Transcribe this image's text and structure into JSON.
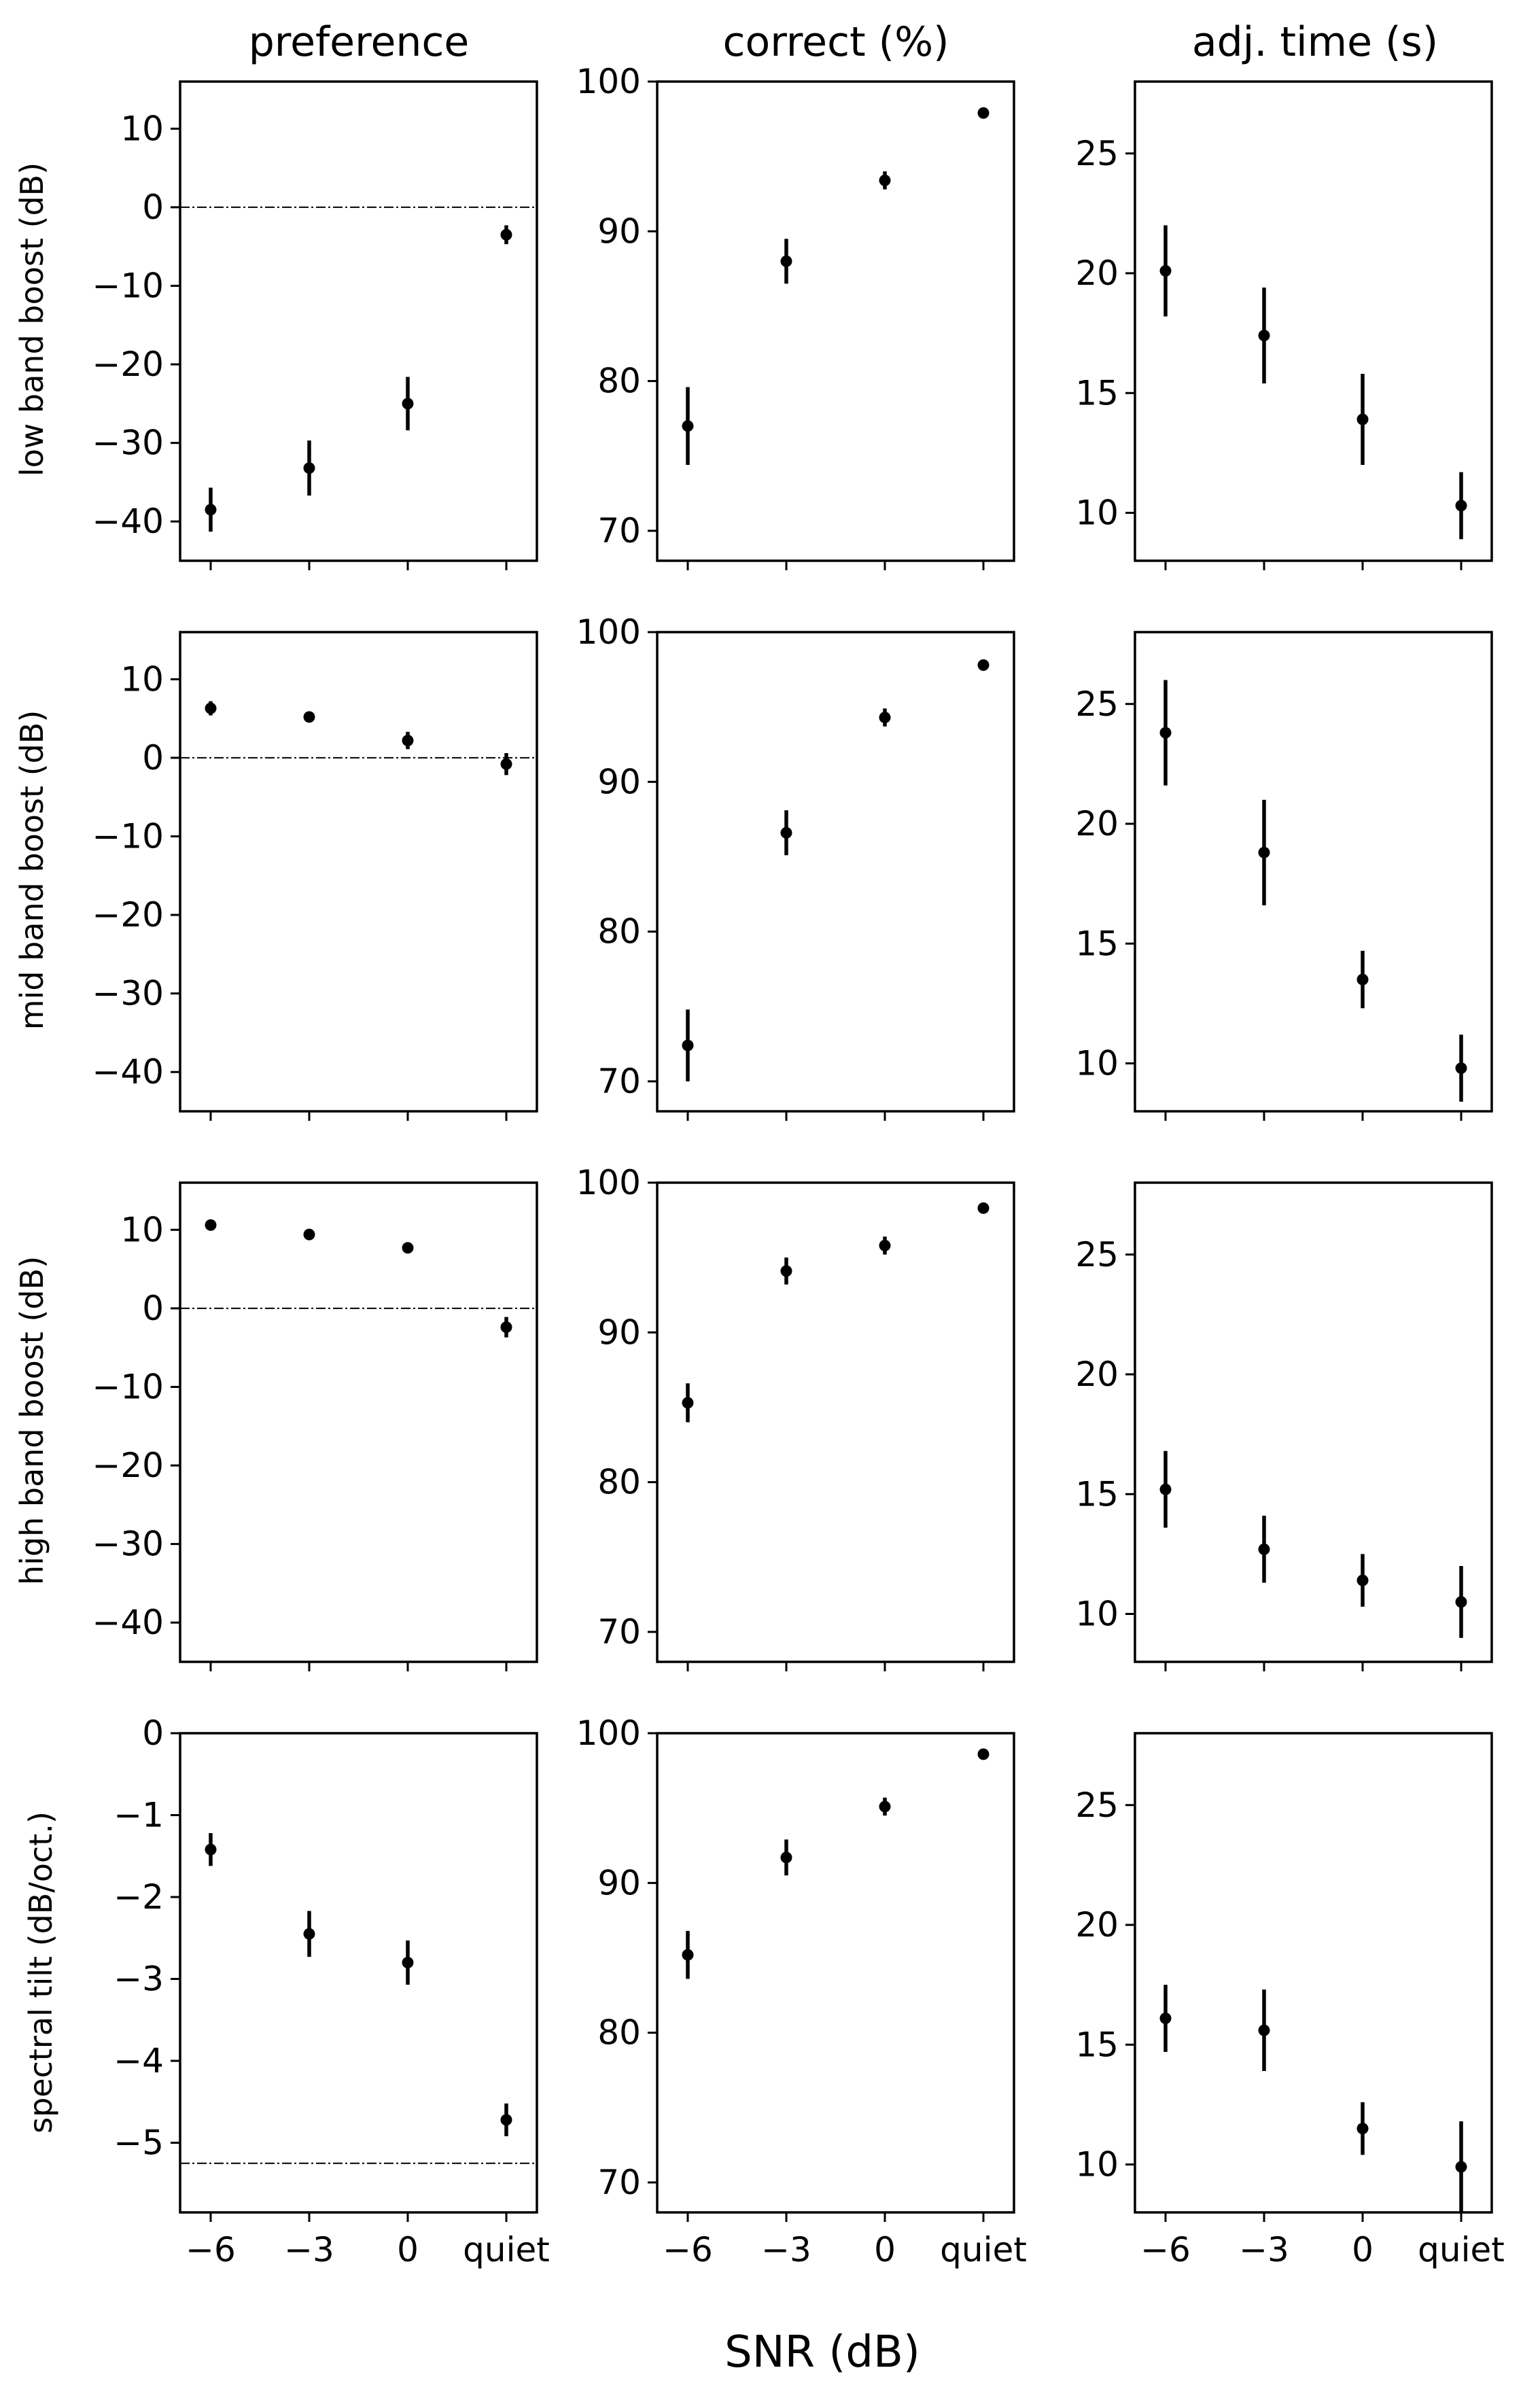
{
  "figure": {
    "xlabel": "SNR (dB)",
    "column_titles": [
      "preference",
      "correct (%)",
      "adj. time (s)"
    ],
    "row_labels": [
      "low band boost (dB)",
      "mid band boost (dB)",
      "high band boost (dB)",
      "spectral tilt (dB/oct.)"
    ]
  },
  "style": {
    "marker_color": "#000000",
    "reference_line_color": "#000000"
  },
  "chart_data": [
    {
      "type": "scatter",
      "panel": "low band boost / preference",
      "x": [
        "-6",
        "-3",
        "0",
        "quiet"
      ],
      "y": [
        -38.5,
        -33.2,
        -25,
        -3.5
      ],
      "error": [
        2.8,
        3.5,
        3.4,
        1.2
      ],
      "ylim": [
        -45,
        16
      ],
      "yticks": [
        -40,
        -30,
        -20,
        -10,
        0,
        10
      ],
      "yticklabels": [
        "−40",
        "−30",
        "−20",
        "−10",
        "0",
        "10"
      ],
      "reference_line": 0
    },
    {
      "type": "scatter",
      "panel": "low band boost / correct",
      "x": [
        "-6",
        "-3",
        "0",
        "quiet"
      ],
      "y": [
        77,
        88,
        93.4,
        97.9
      ],
      "error": [
        2.6,
        1.5,
        0.6,
        0.3
      ],
      "ylim": [
        68,
        100
      ],
      "yticks": [
        70,
        80,
        90,
        100
      ],
      "yticklabels": [
        "70",
        "80",
        "90",
        "100"
      ]
    },
    {
      "type": "scatter",
      "panel": "low band boost / adj. time",
      "x": [
        "-6",
        "-3",
        "0",
        "quiet"
      ],
      "y": [
        20.1,
        17.4,
        13.9,
        10.3
      ],
      "error": [
        1.9,
        2.0,
        1.9,
        1.4
      ],
      "ylim": [
        8,
        28
      ],
      "yticks": [
        10,
        15,
        20,
        25
      ],
      "yticklabels": [
        "10",
        "15",
        "20",
        "25"
      ]
    },
    {
      "type": "scatter",
      "panel": "mid band boost / preference",
      "x": [
        "-6",
        "-3",
        "0",
        "quiet"
      ],
      "y": [
        6.3,
        5.2,
        2.2,
        -0.8
      ],
      "error": [
        0.9,
        0.5,
        1.1,
        1.4
      ],
      "ylim": [
        -45,
        16
      ],
      "yticks": [
        -40,
        -30,
        -20,
        -10,
        0,
        10
      ],
      "yticklabels": [
        "−40",
        "−30",
        "−20",
        "−10",
        "0",
        "10"
      ],
      "reference_line": 0
    },
    {
      "type": "scatter",
      "panel": "mid band boost / correct",
      "x": [
        "-6",
        "-3",
        "0",
        "quiet"
      ],
      "y": [
        72.4,
        86.6,
        94.3,
        97.8
      ],
      "error": [
        2.4,
        1.5,
        0.6,
        0.3
      ],
      "ylim": [
        68,
        100
      ],
      "yticks": [
        70,
        80,
        90,
        100
      ],
      "yticklabels": [
        "70",
        "80",
        "90",
        "100"
      ]
    },
    {
      "type": "scatter",
      "panel": "mid band boost / adj. time",
      "x": [
        "-6",
        "-3",
        "0",
        "quiet"
      ],
      "y": [
        23.8,
        18.8,
        13.5,
        9.8
      ],
      "error": [
        2.2,
        2.2,
        1.2,
        1.4
      ],
      "ylim": [
        8,
        28
      ],
      "yticks": [
        10,
        15,
        20,
        25
      ],
      "yticklabels": [
        "10",
        "15",
        "20",
        "25"
      ]
    },
    {
      "type": "scatter",
      "panel": "high band boost / preference",
      "x": [
        "-6",
        "-3",
        "0",
        "quiet"
      ],
      "y": [
        10.6,
        9.4,
        7.7,
        -2.4
      ],
      "error": [
        0.4,
        0.4,
        0.7,
        1.3
      ],
      "ylim": [
        -45,
        16
      ],
      "yticks": [
        -40,
        -30,
        -20,
        -10,
        0,
        10
      ],
      "yticklabels": [
        "−40",
        "−30",
        "−20",
        "−10",
        "0",
        "10"
      ],
      "reference_line": 0
    },
    {
      "type": "scatter",
      "panel": "high band boost / correct",
      "x": [
        "-6",
        "-3",
        "0",
        "quiet"
      ],
      "y": [
        85.3,
        94.1,
        95.8,
        98.3
      ],
      "error": [
        1.3,
        0.9,
        0.6,
        0.2
      ],
      "ylim": [
        68,
        100
      ],
      "yticks": [
        70,
        80,
        90,
        100
      ],
      "yticklabels": [
        "70",
        "80",
        "90",
        "100"
      ]
    },
    {
      "type": "scatter",
      "panel": "high band boost / adj. time",
      "x": [
        "-6",
        "-3",
        "0",
        "quiet"
      ],
      "y": [
        15.2,
        12.7,
        11.4,
        10.5
      ],
      "error": [
        1.6,
        1.4,
        1.1,
        1.5
      ],
      "ylim": [
        8,
        28
      ],
      "yticks": [
        10,
        15,
        20,
        25
      ],
      "yticklabels": [
        "10",
        "15",
        "20",
        "25"
      ]
    },
    {
      "type": "scatter",
      "panel": "spectral tilt / preference",
      "x": [
        "-6",
        "-3",
        "0",
        "quiet"
      ],
      "y": [
        -1.42,
        -2.45,
        -2.8,
        -4.72
      ],
      "error": [
        0.2,
        0.28,
        0.27,
        0.2
      ],
      "ylim": [
        -5.85,
        0
      ],
      "yticks": [
        -5,
        -4,
        -3,
        -2,
        -1,
        0
      ],
      "yticklabels": [
        "−5",
        "−4",
        "−3",
        "−2",
        "−1",
        "0"
      ],
      "reference_line": -5.25
    },
    {
      "type": "scatter",
      "panel": "spectral tilt / correct",
      "x": [
        "-6",
        "-3",
        "0",
        "quiet"
      ],
      "y": [
        85.2,
        91.7,
        95.1,
        98.6
      ],
      "error": [
        1.6,
        1.2,
        0.6,
        0.2
      ],
      "ylim": [
        68,
        100
      ],
      "yticks": [
        70,
        80,
        90,
        100
      ],
      "yticklabels": [
        "70",
        "80",
        "90",
        "100"
      ]
    },
    {
      "type": "scatter",
      "panel": "spectral tilt / adj. time",
      "x": [
        "-6",
        "-3",
        "0",
        "quiet"
      ],
      "y": [
        16.1,
        15.6,
        11.5,
        9.9
      ],
      "error": [
        1.4,
        1.7,
        1.1,
        1.9
      ],
      "ylim": [
        8,
        28
      ],
      "yticks": [
        10,
        15,
        20,
        25
      ],
      "yticklabels": [
        "10",
        "15",
        "20",
        "25"
      ]
    }
  ],
  "xtick_labels": [
    "−6",
    "−3",
    "0",
    "quiet"
  ]
}
